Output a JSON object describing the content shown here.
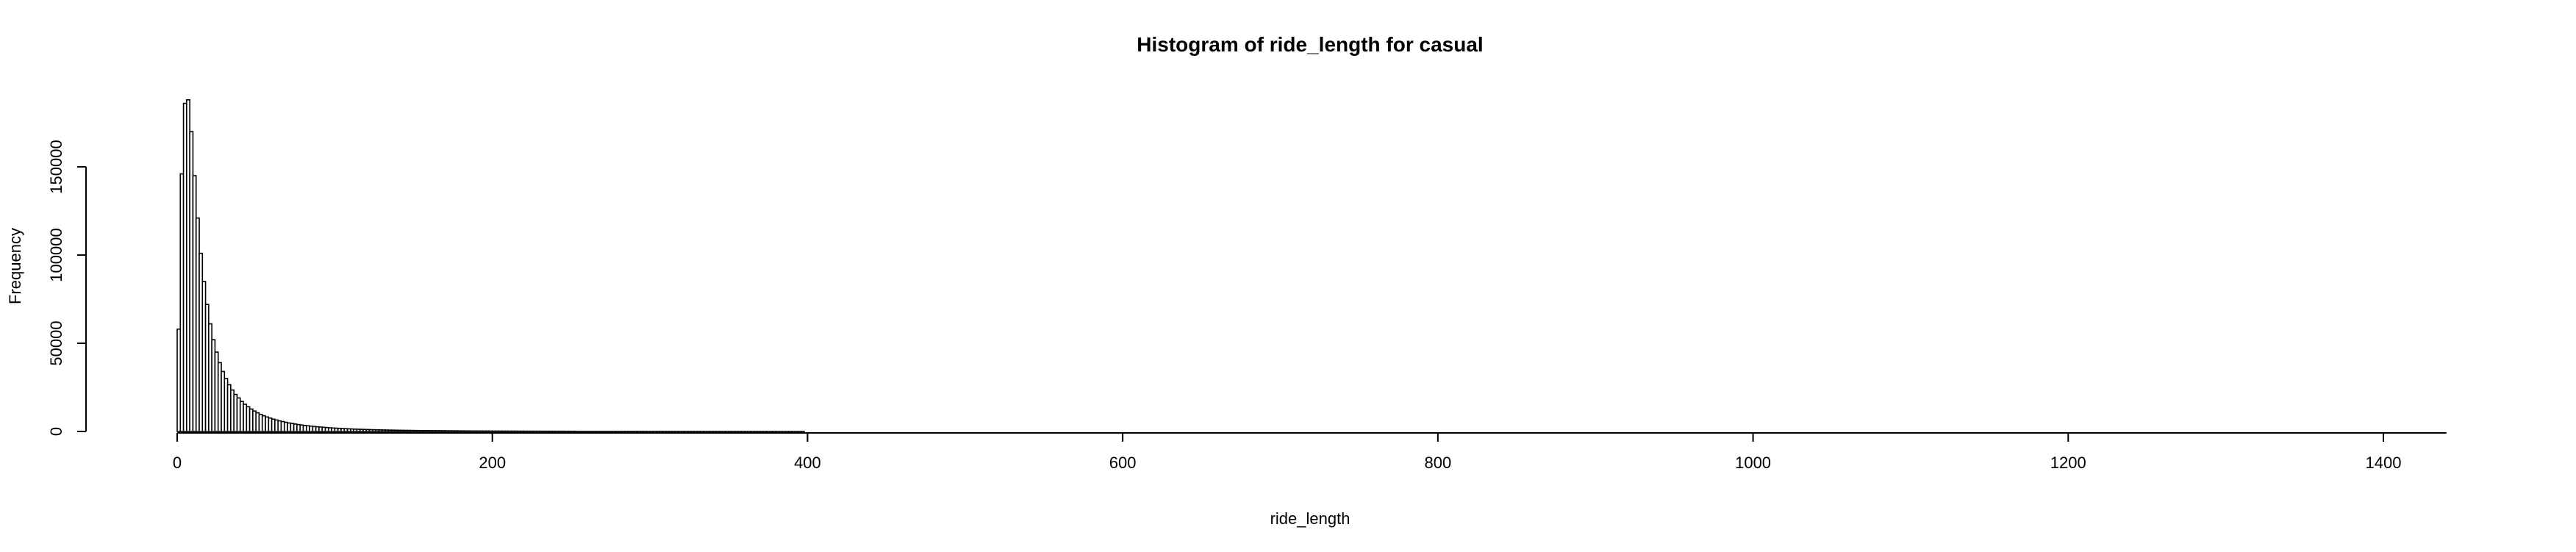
{
  "chart_data": {
    "type": "bar",
    "title": "Histogram of ride_length for casual",
    "xlabel": "ride_length",
    "ylabel": "Frequency",
    "xlim": [
      0,
      1440
    ],
    "ylim": [
      0,
      190000
    ],
    "x_ticks": [
      0,
      200,
      400,
      600,
      800,
      1000,
      1200,
      1400
    ],
    "y_ticks": [
      0,
      50000,
      100000,
      150000
    ],
    "bin_width": 2,
    "bin_start": 0,
    "values": [
      58000,
      146000,
      186000,
      188000,
      170000,
      145000,
      121000,
      101000,
      85000,
      72000,
      61000,
      52000,
      45000,
      39000,
      34000,
      30000,
      26500,
      23500,
      21000,
      19000,
      17000,
      15400,
      14000,
      12700,
      11600,
      10600,
      9700,
      8900,
      8200,
      7600,
      7000,
      6500,
      6000,
      5600,
      5200,
      4800,
      4500,
      4200,
      3900,
      3650,
      3400,
      3200,
      3000,
      2800,
      2650,
      2500,
      2350,
      2200,
      2080,
      1960,
      1850,
      1750,
      1650,
      1560,
      1480,
      1400,
      1330,
      1260,
      1200,
      1140,
      1080,
      1030,
      980,
      930,
      890,
      850,
      810,
      770,
      740,
      710,
      680,
      650,
      620,
      600,
      575,
      550,
      530,
      510,
      490,
      470,
      450,
      435,
      420,
      405,
      390,
      375,
      360,
      348,
      336,
      324,
      312,
      300,
      290,
      280,
      270,
      261,
      252,
      243,
      235,
      227,
      219,
      212,
      205,
      198,
      191,
      185,
      179,
      173,
      167,
      162,
      157,
      152,
      147,
      142,
      138,
      134,
      130,
      126,
      122,
      118,
      114,
      110,
      107,
      104,
      101,
      98,
      95,
      92,
      89,
      86,
      84,
      82,
      80,
      78,
      76,
      74,
      72,
      70,
      68,
      66,
      64,
      62,
      60,
      58,
      57,
      56,
      55,
      54,
      53,
      52,
      51,
      50,
      49,
      48,
      47,
      46,
      45,
      44,
      43,
      42,
      41,
      40,
      39,
      38,
      37,
      36,
      35,
      34,
      33,
      32,
      31,
      30,
      29,
      28,
      27,
      26,
      25,
      24,
      23,
      22,
      21,
      20,
      19,
      18,
      17,
      16,
      15,
      14,
      13,
      12,
      11,
      10,
      9,
      8,
      7,
      6,
      5,
      4,
      3,
      2,
      1
    ]
  }
}
